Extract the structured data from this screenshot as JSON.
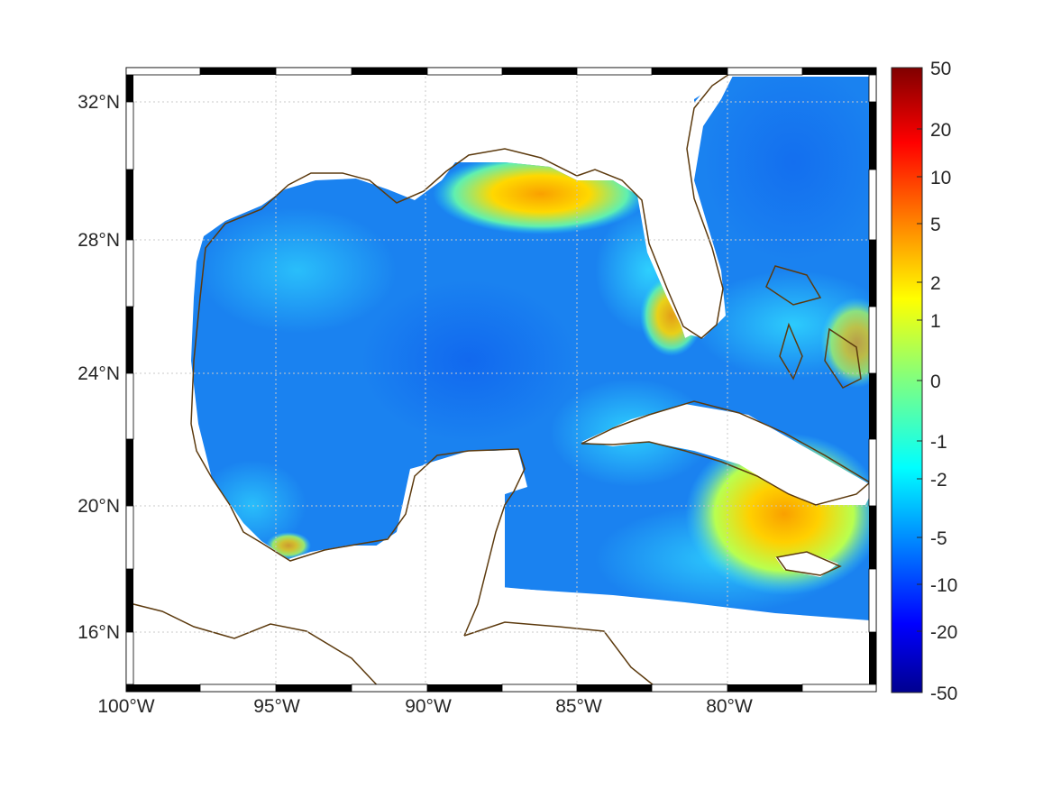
{
  "map": {
    "lon_labels": [
      "100°W",
      "95°W",
      "90°W",
      "85°W",
      "80°W"
    ],
    "lat_labels": [
      "32°N",
      "28°N",
      "24°N",
      "20°N",
      "16°N"
    ],
    "lon_range": [
      -100,
      -75.15
    ],
    "lat_range": [
      14.2,
      33.0
    ],
    "grid": true,
    "coastline_color": "#5c3a0e"
  },
  "colorbar": {
    "tick_labels": [
      "50",
      "20",
      "10",
      "5",
      "2",
      "1",
      "0",
      "-1",
      "-2",
      "-5",
      "-10",
      "-20",
      "-50"
    ],
    "colormap": "jet",
    "placement": "right"
  }
}
